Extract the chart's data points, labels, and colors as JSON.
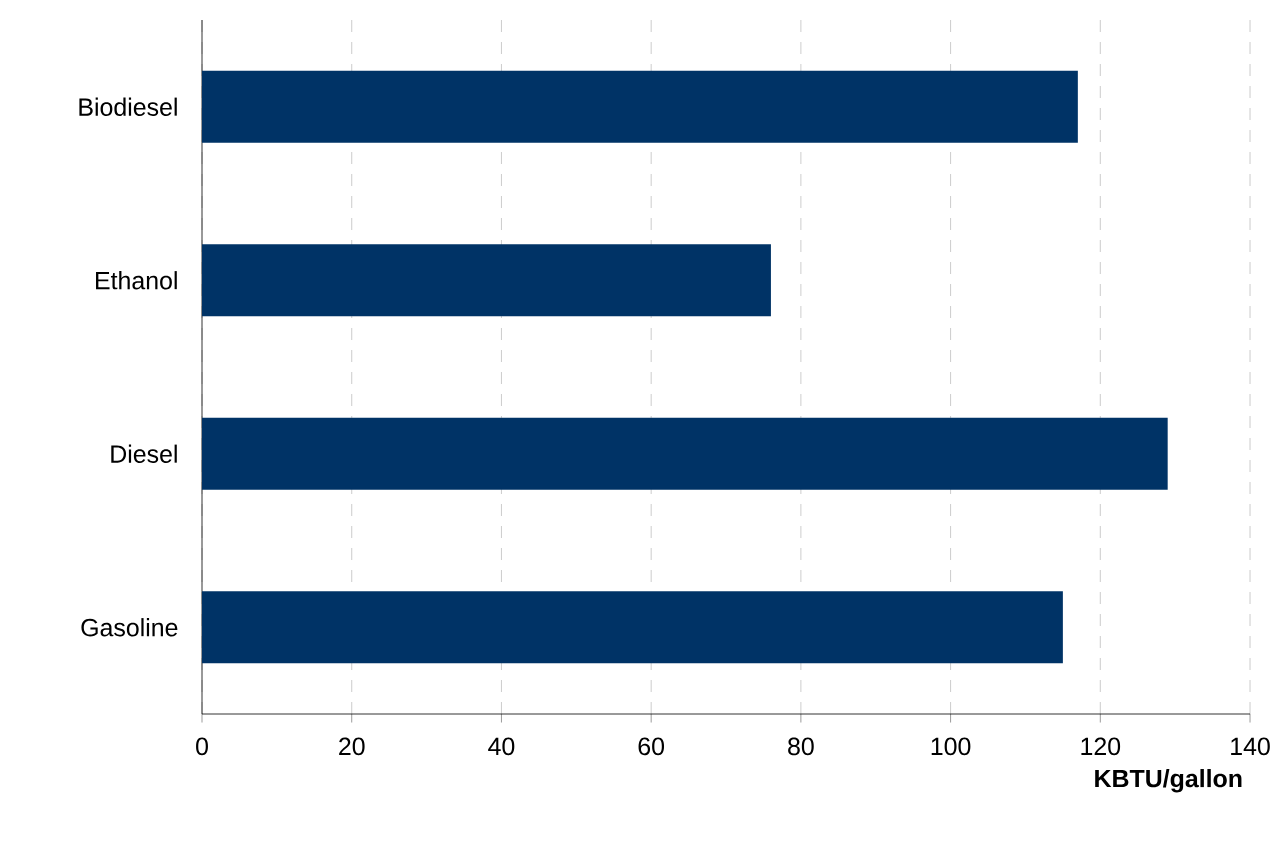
{
  "chart_data": {
    "type": "bar",
    "orientation": "horizontal",
    "xlabel": "**KBTU/gallon**",
    "categories": [
      "Biodiesel",
      "Ethanol",
      "Diesel",
      "Gasoline"
    ],
    "values": [
      117,
      76,
      129,
      115
    ],
    "color": "#003366",
    "xlim": [
      0,
      140
    ],
    "xticks": [
      0,
      20,
      40,
      60,
      80,
      100,
      120,
      140
    ],
    "grid": "x"
  }
}
